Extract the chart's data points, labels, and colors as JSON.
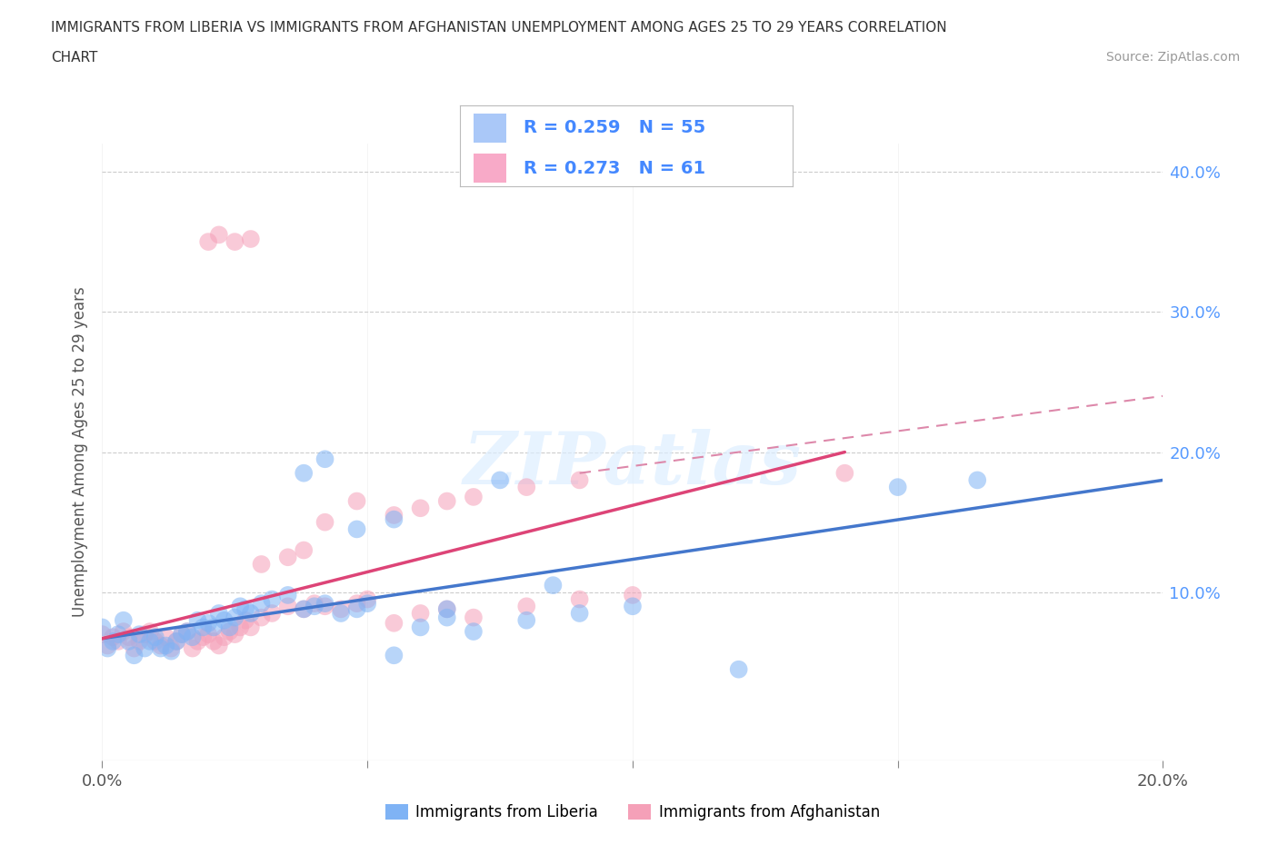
{
  "title_line1": "IMMIGRANTS FROM LIBERIA VS IMMIGRANTS FROM AFGHANISTAN UNEMPLOYMENT AMONG AGES 25 TO 29 YEARS CORRELATION",
  "title_line2": "CHART",
  "source_text": "Source: ZipAtlas.com",
  "ylabel": "Unemployment Among Ages 25 to 29 years",
  "xlim": [
    0.0,
    0.2
  ],
  "ylim": [
    -0.02,
    0.42
  ],
  "xticks": [
    0.0,
    0.05,
    0.1,
    0.15,
    0.2
  ],
  "xticklabels": [
    "0.0%",
    "",
    "",
    "",
    "20.0%"
  ],
  "ytick_positions": [
    0.0,
    0.1,
    0.2,
    0.3,
    0.4
  ],
  "yticklabels_right": [
    "",
    "10.0%",
    "20.0%",
    "30.0%",
    "40.0%"
  ],
  "legend_entries": [
    {
      "label": "R = 0.259   N = 55",
      "color": "#aac8f8"
    },
    {
      "label": "R = 0.273   N = 61",
      "color": "#f8aac8"
    }
  ],
  "legend_label_liberia": "Immigrants from Liberia",
  "legend_label_afghanistan": "Immigrants from Afghanistan",
  "liberia_color": "#7fb3f5",
  "afghanistan_color": "#f5a0b8",
  "trend_liberia_color": "#4477cc",
  "trend_afghanistan_color": "#dd4477",
  "trend_afghanistan_dashed_color": "#dd88aa",
  "watermark_text": "ZIPatlas",
  "background_color": "#ffffff",
  "grid_color": "#cccccc",
  "liberia_scatter_x": [
    0.0,
    0.001,
    0.002,
    0.003,
    0.004,
    0.005,
    0.006,
    0.007,
    0.008,
    0.009,
    0.01,
    0.011,
    0.012,
    0.013,
    0.014,
    0.015,
    0.016,
    0.017,
    0.018,
    0.019,
    0.02,
    0.021,
    0.022,
    0.023,
    0.024,
    0.025,
    0.026,
    0.027,
    0.028,
    0.03,
    0.032,
    0.035,
    0.038,
    0.04,
    0.042,
    0.045,
    0.048,
    0.05,
    0.055,
    0.06,
    0.065,
    0.07,
    0.08,
    0.09,
    0.1,
    0.038,
    0.042,
    0.048,
    0.055,
    0.065,
    0.075,
    0.085,
    0.12,
    0.15,
    0.165
  ],
  "liberia_scatter_y": [
    0.075,
    0.06,
    0.065,
    0.07,
    0.08,
    0.065,
    0.055,
    0.07,
    0.06,
    0.065,
    0.068,
    0.06,
    0.062,
    0.058,
    0.065,
    0.07,
    0.072,
    0.068,
    0.08,
    0.075,
    0.078,
    0.075,
    0.085,
    0.08,
    0.075,
    0.082,
    0.09,
    0.088,
    0.085,
    0.092,
    0.095,
    0.098,
    0.088,
    0.09,
    0.092,
    0.085,
    0.088,
    0.092,
    0.055,
    0.075,
    0.082,
    0.072,
    0.08,
    0.085,
    0.09,
    0.185,
    0.195,
    0.145,
    0.152,
    0.088,
    0.18,
    0.105,
    0.045,
    0.175,
    0.18
  ],
  "afghanistan_scatter_x": [
    0.0,
    0.001,
    0.002,
    0.003,
    0.004,
    0.005,
    0.006,
    0.007,
    0.008,
    0.009,
    0.01,
    0.011,
    0.012,
    0.013,
    0.014,
    0.015,
    0.016,
    0.017,
    0.018,
    0.019,
    0.02,
    0.021,
    0.022,
    0.023,
    0.024,
    0.025,
    0.026,
    0.027,
    0.028,
    0.03,
    0.032,
    0.035,
    0.038,
    0.04,
    0.042,
    0.045,
    0.048,
    0.05,
    0.055,
    0.06,
    0.065,
    0.07,
    0.08,
    0.09,
    0.1,
    0.02,
    0.022,
    0.025,
    0.028,
    0.03,
    0.035,
    0.038,
    0.042,
    0.048,
    0.055,
    0.06,
    0.065,
    0.07,
    0.08,
    0.09,
    0.14
  ],
  "afghanistan_scatter_y": [
    0.07,
    0.062,
    0.068,
    0.065,
    0.072,
    0.068,
    0.06,
    0.065,
    0.07,
    0.072,
    0.065,
    0.062,
    0.068,
    0.06,
    0.065,
    0.07,
    0.072,
    0.06,
    0.065,
    0.068,
    0.07,
    0.065,
    0.062,
    0.068,
    0.072,
    0.07,
    0.075,
    0.08,
    0.075,
    0.082,
    0.085,
    0.09,
    0.088,
    0.092,
    0.09,
    0.088,
    0.092,
    0.095,
    0.078,
    0.085,
    0.088,
    0.082,
    0.09,
    0.095,
    0.098,
    0.35,
    0.355,
    0.35,
    0.352,
    0.12,
    0.125,
    0.13,
    0.15,
    0.165,
    0.155,
    0.16,
    0.165,
    0.168,
    0.175,
    0.18,
    0.185
  ],
  "trend_lib_x0": 0.0,
  "trend_lib_y0": 0.067,
  "trend_lib_x1": 0.2,
  "trend_lib_y1": 0.18,
  "trend_afg_solid_x0": 0.0,
  "trend_afg_solid_y0": 0.067,
  "trend_afg_solid_x1": 0.14,
  "trend_afg_solid_y1": 0.2,
  "trend_afg_dashed_x0": 0.09,
  "trend_afg_dashed_y0": 0.185,
  "trend_afg_dashed_x1": 0.2,
  "trend_afg_dashed_y1": 0.24
}
